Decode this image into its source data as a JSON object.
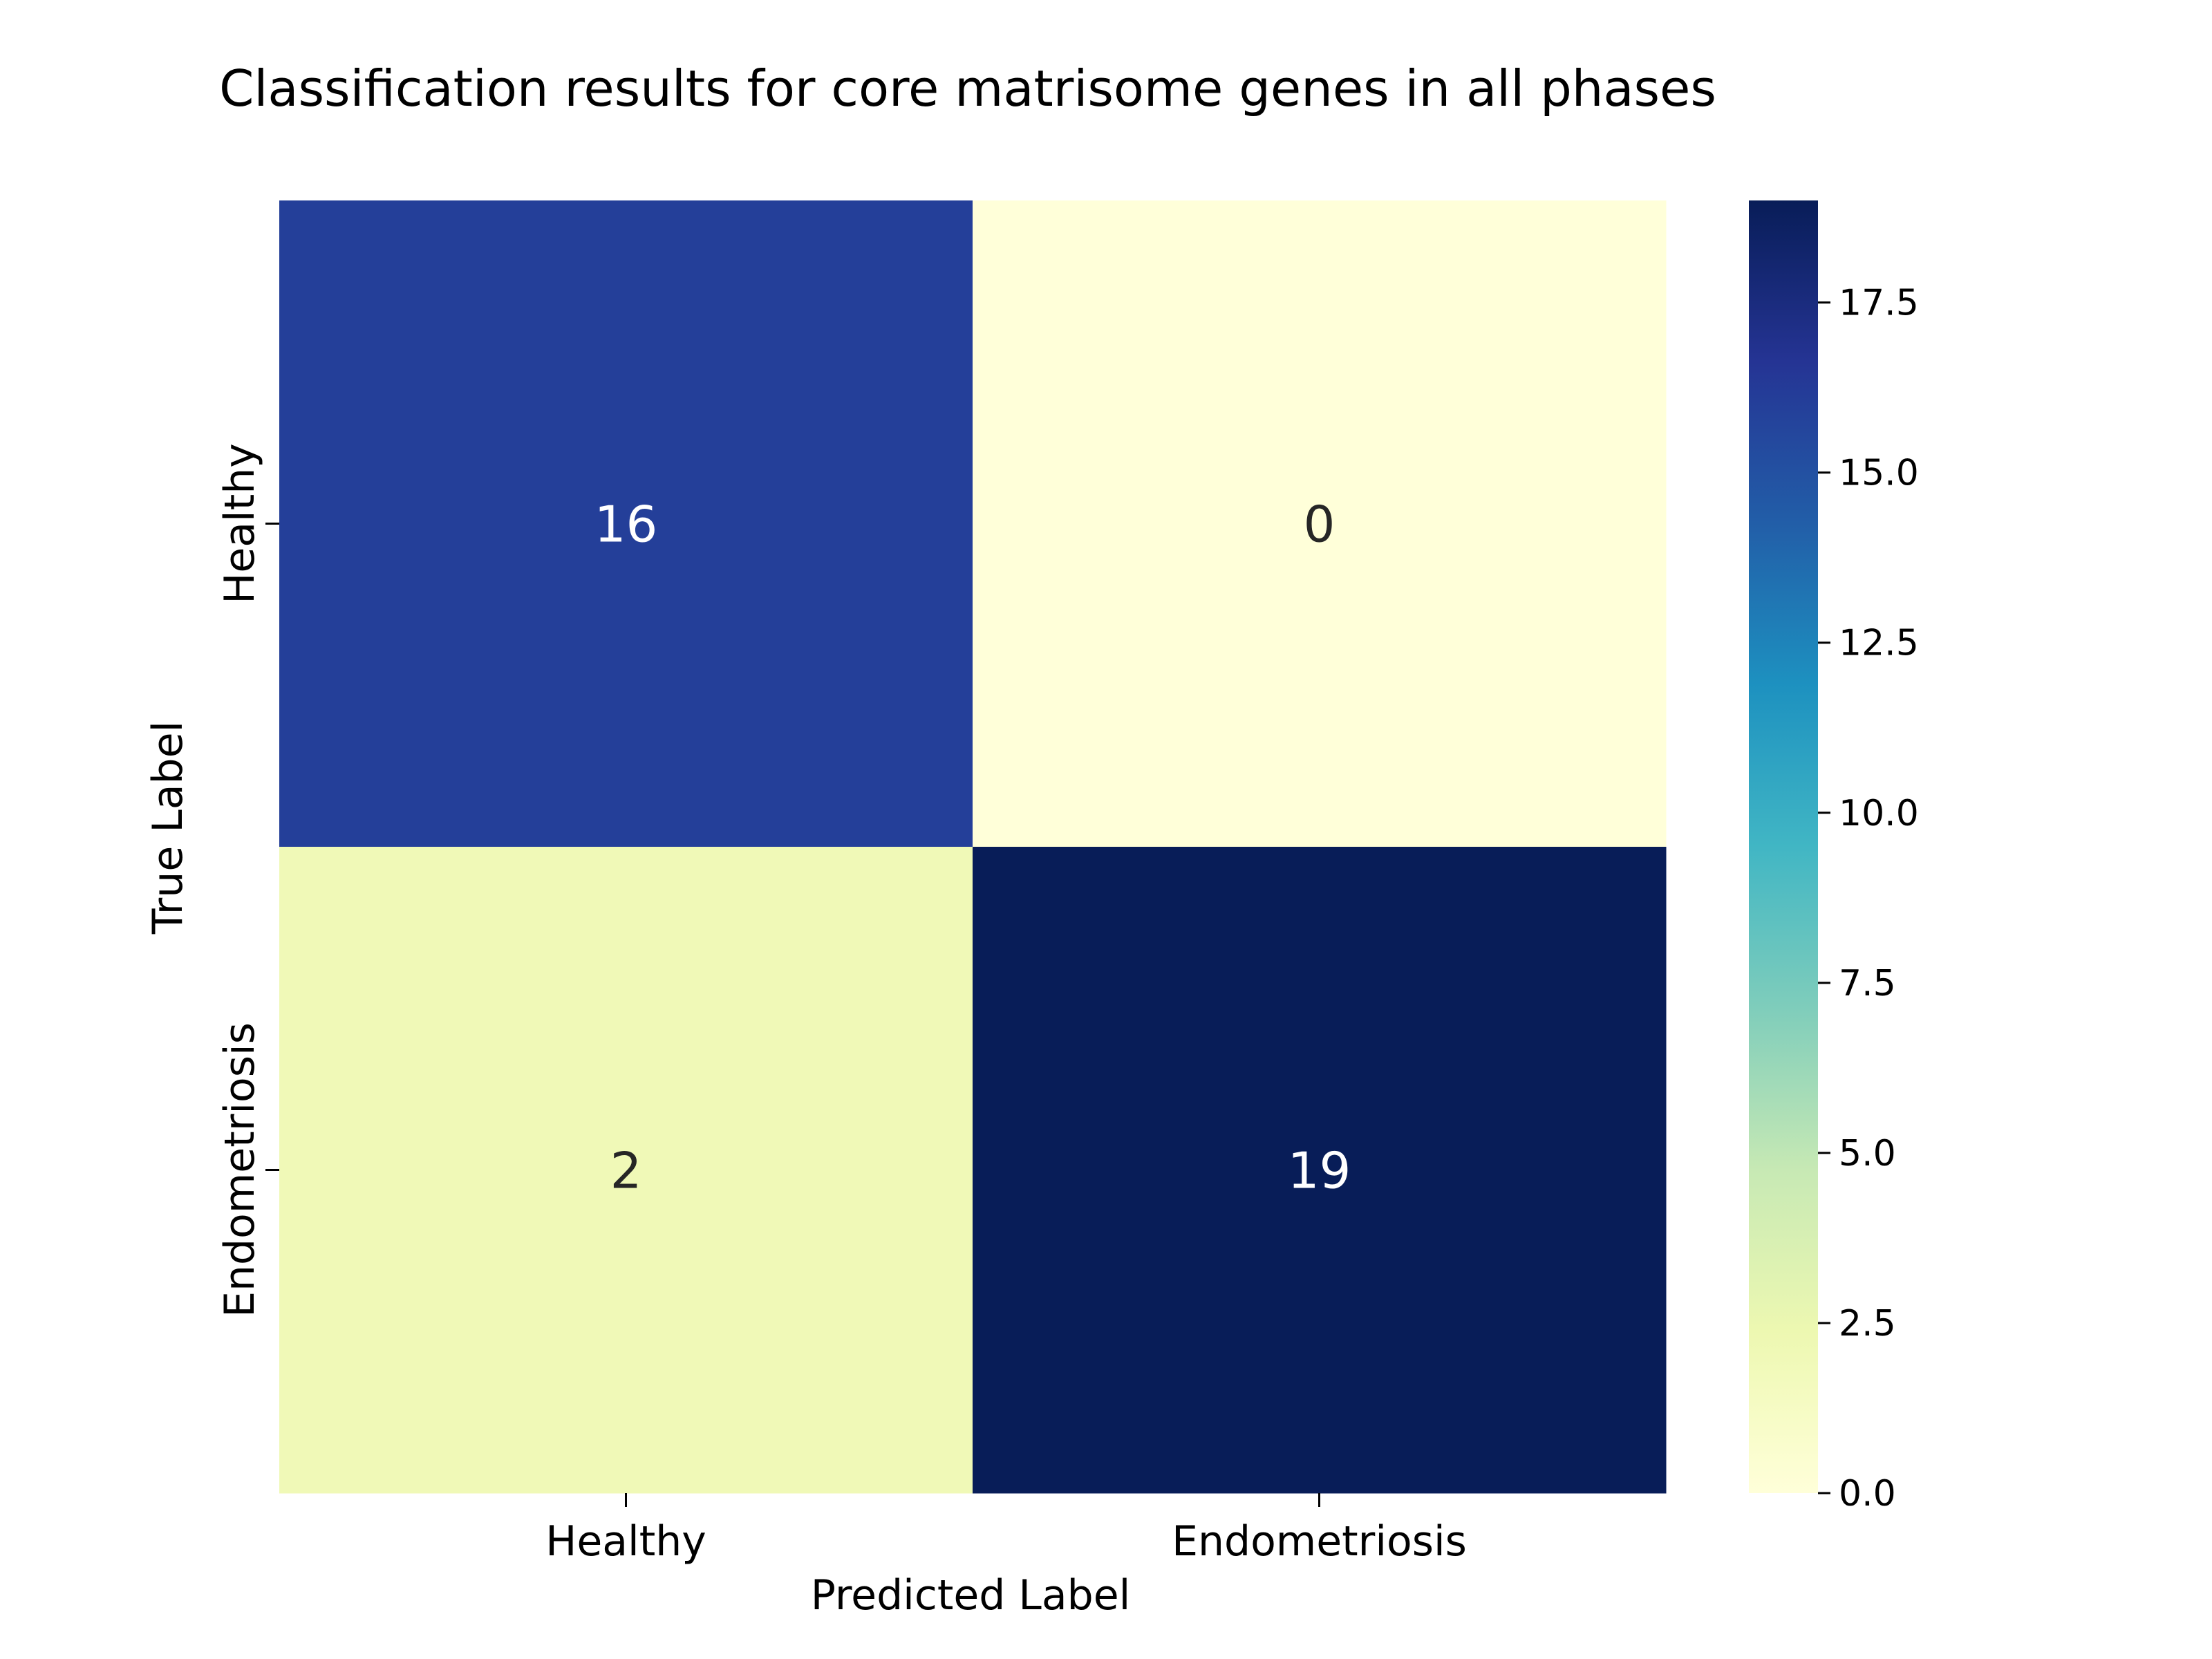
{
  "chart_data": {
    "type": "heatmap",
    "title": "Classification results for core matrisome genes in all phases",
    "xlabel": "Predicted Label",
    "ylabel": "True Label",
    "x_categories": [
      "Healthy",
      "Endometriosis"
    ],
    "y_categories": [
      "Healthy",
      "Endometriosis"
    ],
    "values": [
      [
        16,
        0
      ],
      [
        2,
        19
      ]
    ],
    "colormap": "YlGnBu",
    "colorbar": {
      "range": [
        0,
        19
      ],
      "ticks": [
        0.0,
        2.5,
        5.0,
        7.5,
        10.0,
        12.5,
        15.0,
        17.5
      ],
      "tick_labels": [
        "0.0",
        "2.5",
        "5.0",
        "7.5",
        "10.0",
        "12.5",
        "15.0",
        "17.5"
      ]
    },
    "colors": {
      "low": "#ffffd9",
      "high": "#081d58",
      "text_dark": "#262626",
      "text_light": "#ffffff"
    }
  }
}
